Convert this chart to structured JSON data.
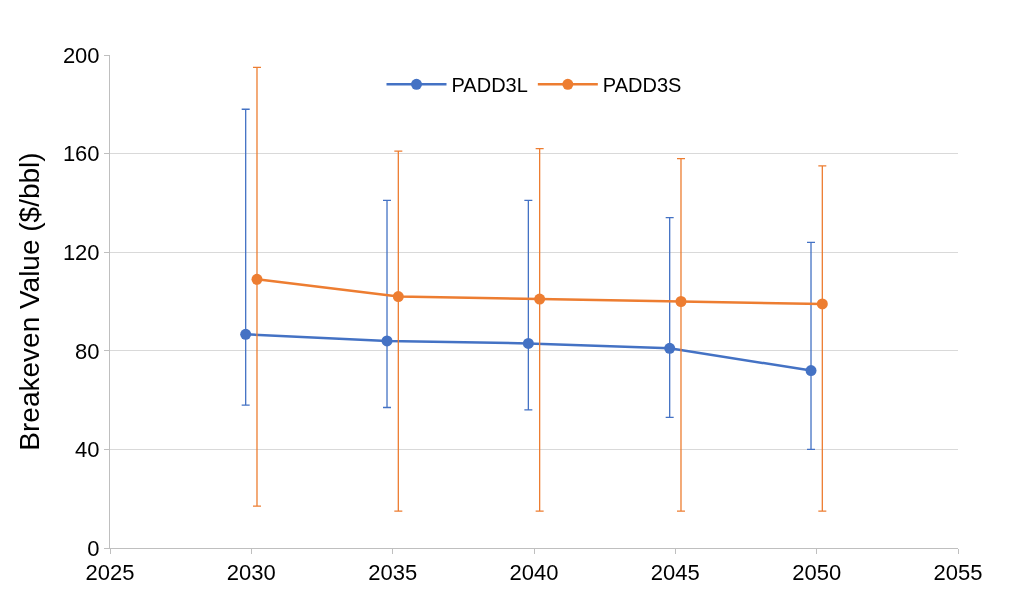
{
  "chart_data": {
    "type": "line",
    "ylabel": "Breakeven Value ($/bbl)",
    "xlim": [
      2025,
      2055
    ],
    "xticks": [
      2025,
      2030,
      2035,
      2040,
      2045,
      2050,
      2055
    ],
    "ylim": [
      0,
      200
    ],
    "yticks": [
      0,
      40,
      80,
      120,
      160,
      200
    ],
    "grid": "y",
    "legend": "top",
    "marker": "circle",
    "line_style": "solid",
    "series": [
      {
        "name": "PADD3L",
        "color": "#4472c4",
        "x": [
          2029.8,
          2034.8,
          2039.8,
          2044.8,
          2049.8
        ],
        "values": [
          86.7,
          84,
          83,
          81,
          72
        ],
        "errors": [
          [
            58,
            178
          ],
          [
            57,
            141
          ],
          [
            56,
            141
          ],
          [
            53,
            134
          ],
          [
            40,
            124
          ]
        ]
      },
      {
        "name": "PADD3S",
        "color": "#ed7d31",
        "x": [
          2030.2,
          2035.2,
          2040.2,
          2045.2,
          2050.2
        ],
        "values": [
          109,
          102,
          101,
          100,
          99
        ],
        "errors": [
          [
            17,
            195
          ],
          [
            15,
            161
          ],
          [
            15,
            162
          ],
          [
            15,
            158
          ],
          [
            15,
            155
          ]
        ]
      }
    ]
  }
}
